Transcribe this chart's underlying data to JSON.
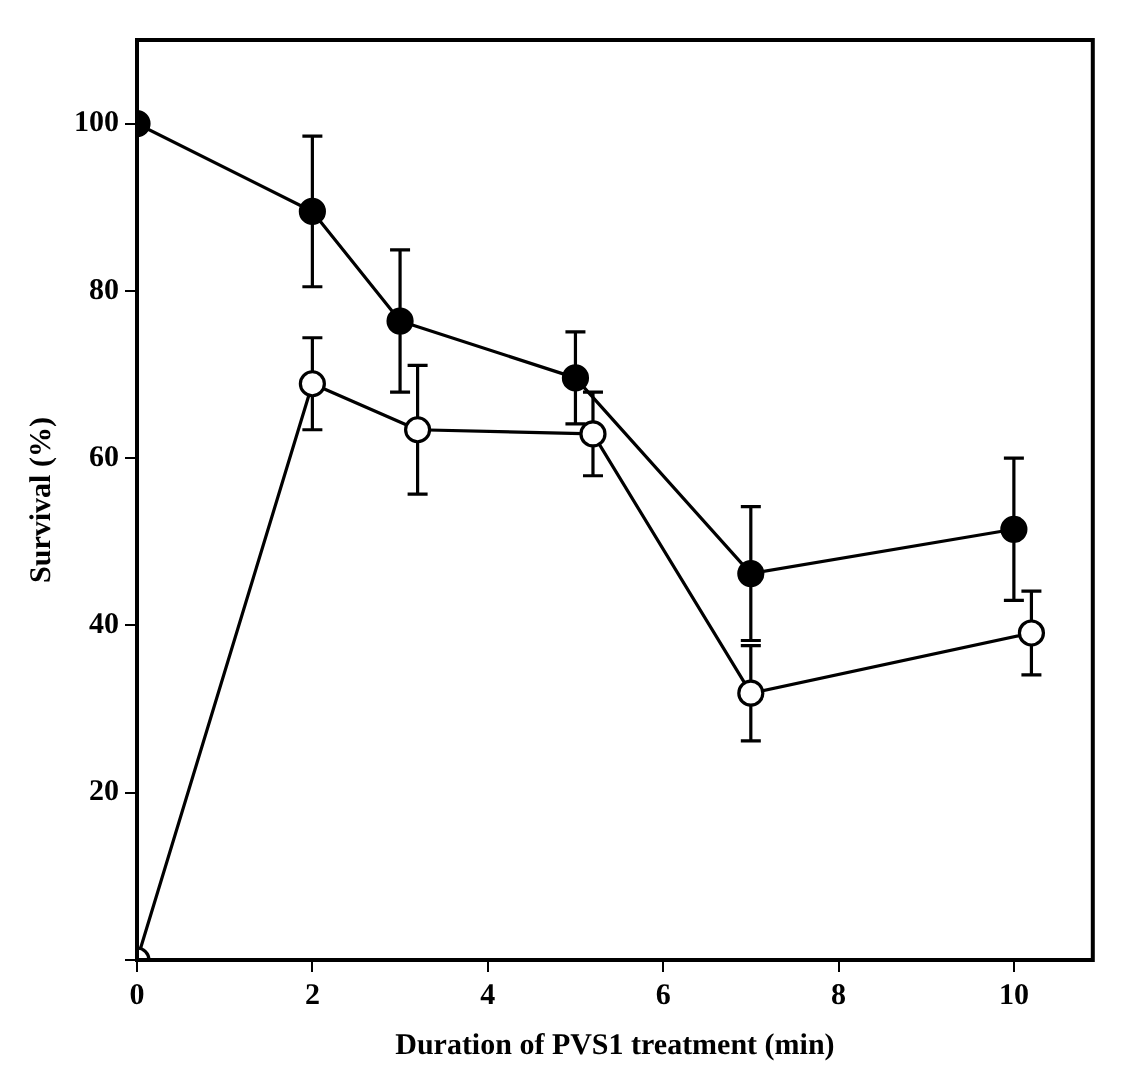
{
  "chart_data": {
    "type": "line",
    "xlabel": "Duration of PVS1 treatment (min)",
    "ylabel": "Survival (%)",
    "series": [
      {
        "color": "#000000",
        "x": [
          0,
          2,
          3,
          5,
          7,
          10
        ],
        "values": [
          100,
          89.5,
          76.4,
          69.6,
          46.2,
          51.5
        ],
        "errors": [
          null,
          9,
          8.5,
          5.5,
          8,
          8.5
        ]
      },
      {
        "color": "#000000",
        "x": [
          0,
          2,
          3.2,
          5.2,
          7,
          10.2
        ],
        "values": [
          0,
          68.9,
          63.4,
          62.9,
          31.9,
          39.1
        ],
        "errors": [
          null,
          5.5,
          7.7,
          5,
          5.7,
          5
        ]
      }
    ],
    "xlim": [
      0,
      10.9
    ],
    "ylim": [
      0,
      110
    ],
    "xticks": [
      0,
      2,
      4,
      6,
      8,
      10
    ],
    "yticks": [
      {
        "value": 0,
        "label": null
      },
      20,
      40,
      60,
      80,
      100
    ],
    "marker": "circle",
    "line_style": "solid",
    "grid": false,
    "legend": false
  }
}
